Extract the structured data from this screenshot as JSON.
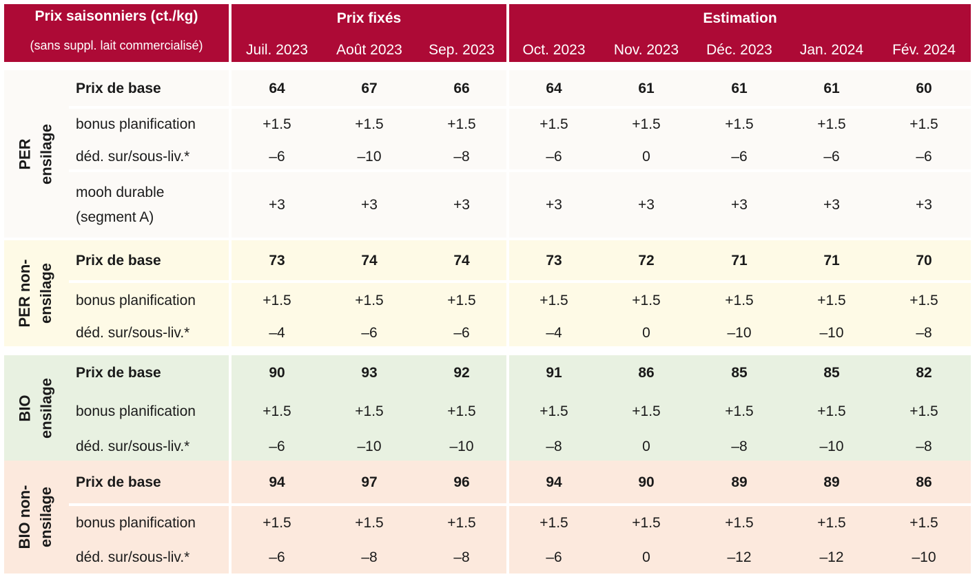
{
  "header": {
    "title": "Prix saisonniers (ct./kg)",
    "subtitle": "(sans suppl. lait commercialisé)",
    "group_fixed": "Prix fixés",
    "group_estimate": "Estimation",
    "months": [
      "Juil. 2023",
      "Août 2023",
      "Sep. 2023",
      "Oct. 2023",
      "Nov. 2023",
      "Déc. 2023",
      "Jan. 2024",
      "Fév. 2024"
    ]
  },
  "groups": [
    {
      "label_line1": "PER",
      "label_line2": "ensilage",
      "color": "#fcfaf7",
      "rows": [
        {
          "label": "Prix de base",
          "values": [
            "64",
            "67",
            "66",
            "64",
            "61",
            "61",
            "61",
            "60"
          ]
        },
        {
          "label": "bonus planification",
          "values": [
            "+1.5",
            "+1.5",
            "+1.5",
            "+1.5",
            "+1.5",
            "+1.5",
            "+1.5",
            "+1.5"
          ]
        },
        {
          "label": "déd. sur/sous-liv.*",
          "values": [
            "–6",
            "–10",
            "–8",
            "–6",
            "0",
            "–6",
            "–6",
            "–6"
          ]
        },
        {
          "label_line1": "mooh durable",
          "label_line2": "(segment A)",
          "values": [
            "+3",
            "+3",
            "+3",
            "+3",
            "+3",
            "+3",
            "+3",
            "+3"
          ]
        }
      ]
    },
    {
      "label_line1": "PER non-",
      "label_line2": "ensilage",
      "color": "#fefae6",
      "rows": [
        {
          "label": "Prix de base",
          "values": [
            "73",
            "74",
            "74",
            "73",
            "72",
            "71",
            "71",
            "70"
          ]
        },
        {
          "label": "bonus planification",
          "values": [
            "+1.5",
            "+1.5",
            "+1.5",
            "+1.5",
            "+1.5",
            "+1.5",
            "+1.5",
            "+1.5"
          ]
        },
        {
          "label": "déd. sur/sous-liv.*",
          "values": [
            "–4",
            "–6",
            "–6",
            "–4",
            "0",
            "–10",
            "–10",
            "–8"
          ]
        }
      ]
    },
    {
      "label_line1": "BIO",
      "label_line2": "ensilage",
      "color": "#e8f1e1",
      "rows": [
        {
          "label": "Prix de base",
          "values": [
            "90",
            "93",
            "92",
            "91",
            "86",
            "85",
            "85",
            "82"
          ]
        },
        {
          "label": "bonus planification",
          "values": [
            "+1.5",
            "+1.5",
            "+1.5",
            "+1.5",
            "+1.5",
            "+1.5",
            "+1.5",
            "+1.5"
          ]
        },
        {
          "label": "déd. sur/sous-liv.*",
          "values": [
            "–6",
            "–10",
            "–10",
            "–8",
            "0",
            "–8",
            "–10",
            "–8"
          ]
        }
      ]
    },
    {
      "label_line1": "BIO non-",
      "label_line2": "ensilage",
      "color": "#fce9dd",
      "rows": [
        {
          "label": "Prix de base",
          "values": [
            "94",
            "97",
            "96",
            "94",
            "90",
            "89",
            "89",
            "86"
          ]
        },
        {
          "label": "bonus planification",
          "values": [
            "+1.5",
            "+1.5",
            "+1.5",
            "+1.5",
            "+1.5",
            "+1.5",
            "+1.5",
            "+1.5"
          ]
        },
        {
          "label": "déd. sur/sous-liv.*",
          "values": [
            "–6",
            "–8",
            "–8",
            "–6",
            "0",
            "–12",
            "–12",
            "–10"
          ]
        }
      ]
    }
  ]
}
